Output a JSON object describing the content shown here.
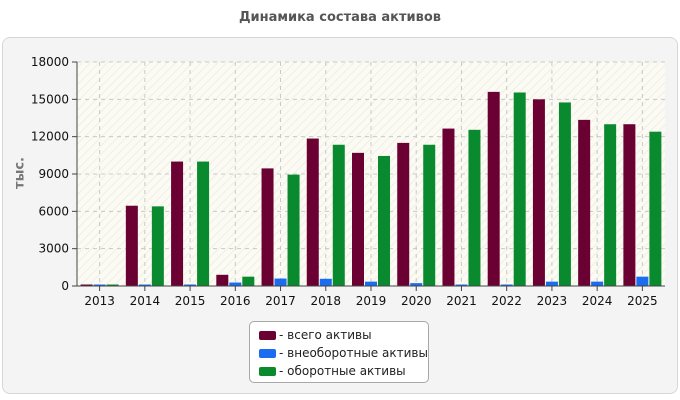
{
  "chart_data": {
    "type": "bar",
    "title": "Динамика состава активов",
    "xlabel": "",
    "ylabel": "тыс.",
    "ylim": [
      0,
      18000
    ],
    "yticks": [
      0,
      3000,
      6000,
      9000,
      12000,
      15000,
      18000
    ],
    "ytick_labels": [
      "0",
      "3000",
      "6000",
      "9000",
      "12000",
      "15000",
      "18000"
    ],
    "grid": true,
    "legend_position": "bottom-center",
    "categories": [
      "2013",
      "2014",
      "2015",
      "2016",
      "2017",
      "2018",
      "2019",
      "2020",
      "2021",
      "2022",
      "2023",
      "2024",
      "2025"
    ],
    "series": [
      {
        "name": "- всего активы",
        "color": "#6b0033",
        "values": [
          80,
          6450,
          10000,
          900,
          9450,
          11850,
          10700,
          11500,
          12650,
          15600,
          15000,
          13350,
          13000
        ]
      },
      {
        "name": "- внеоборотные активы",
        "color": "#1a6cf0",
        "values": [
          60,
          80,
          80,
          280,
          600,
          580,
          350,
          230,
          80,
          80,
          350,
          350,
          750
        ]
      },
      {
        "name": "- оборотные активы",
        "color": "#0a8a2e",
        "values": [
          40,
          6400,
          10000,
          750,
          8950,
          11350,
          10450,
          11350,
          12550,
          15550,
          14750,
          13000,
          12400
        ]
      }
    ]
  }
}
